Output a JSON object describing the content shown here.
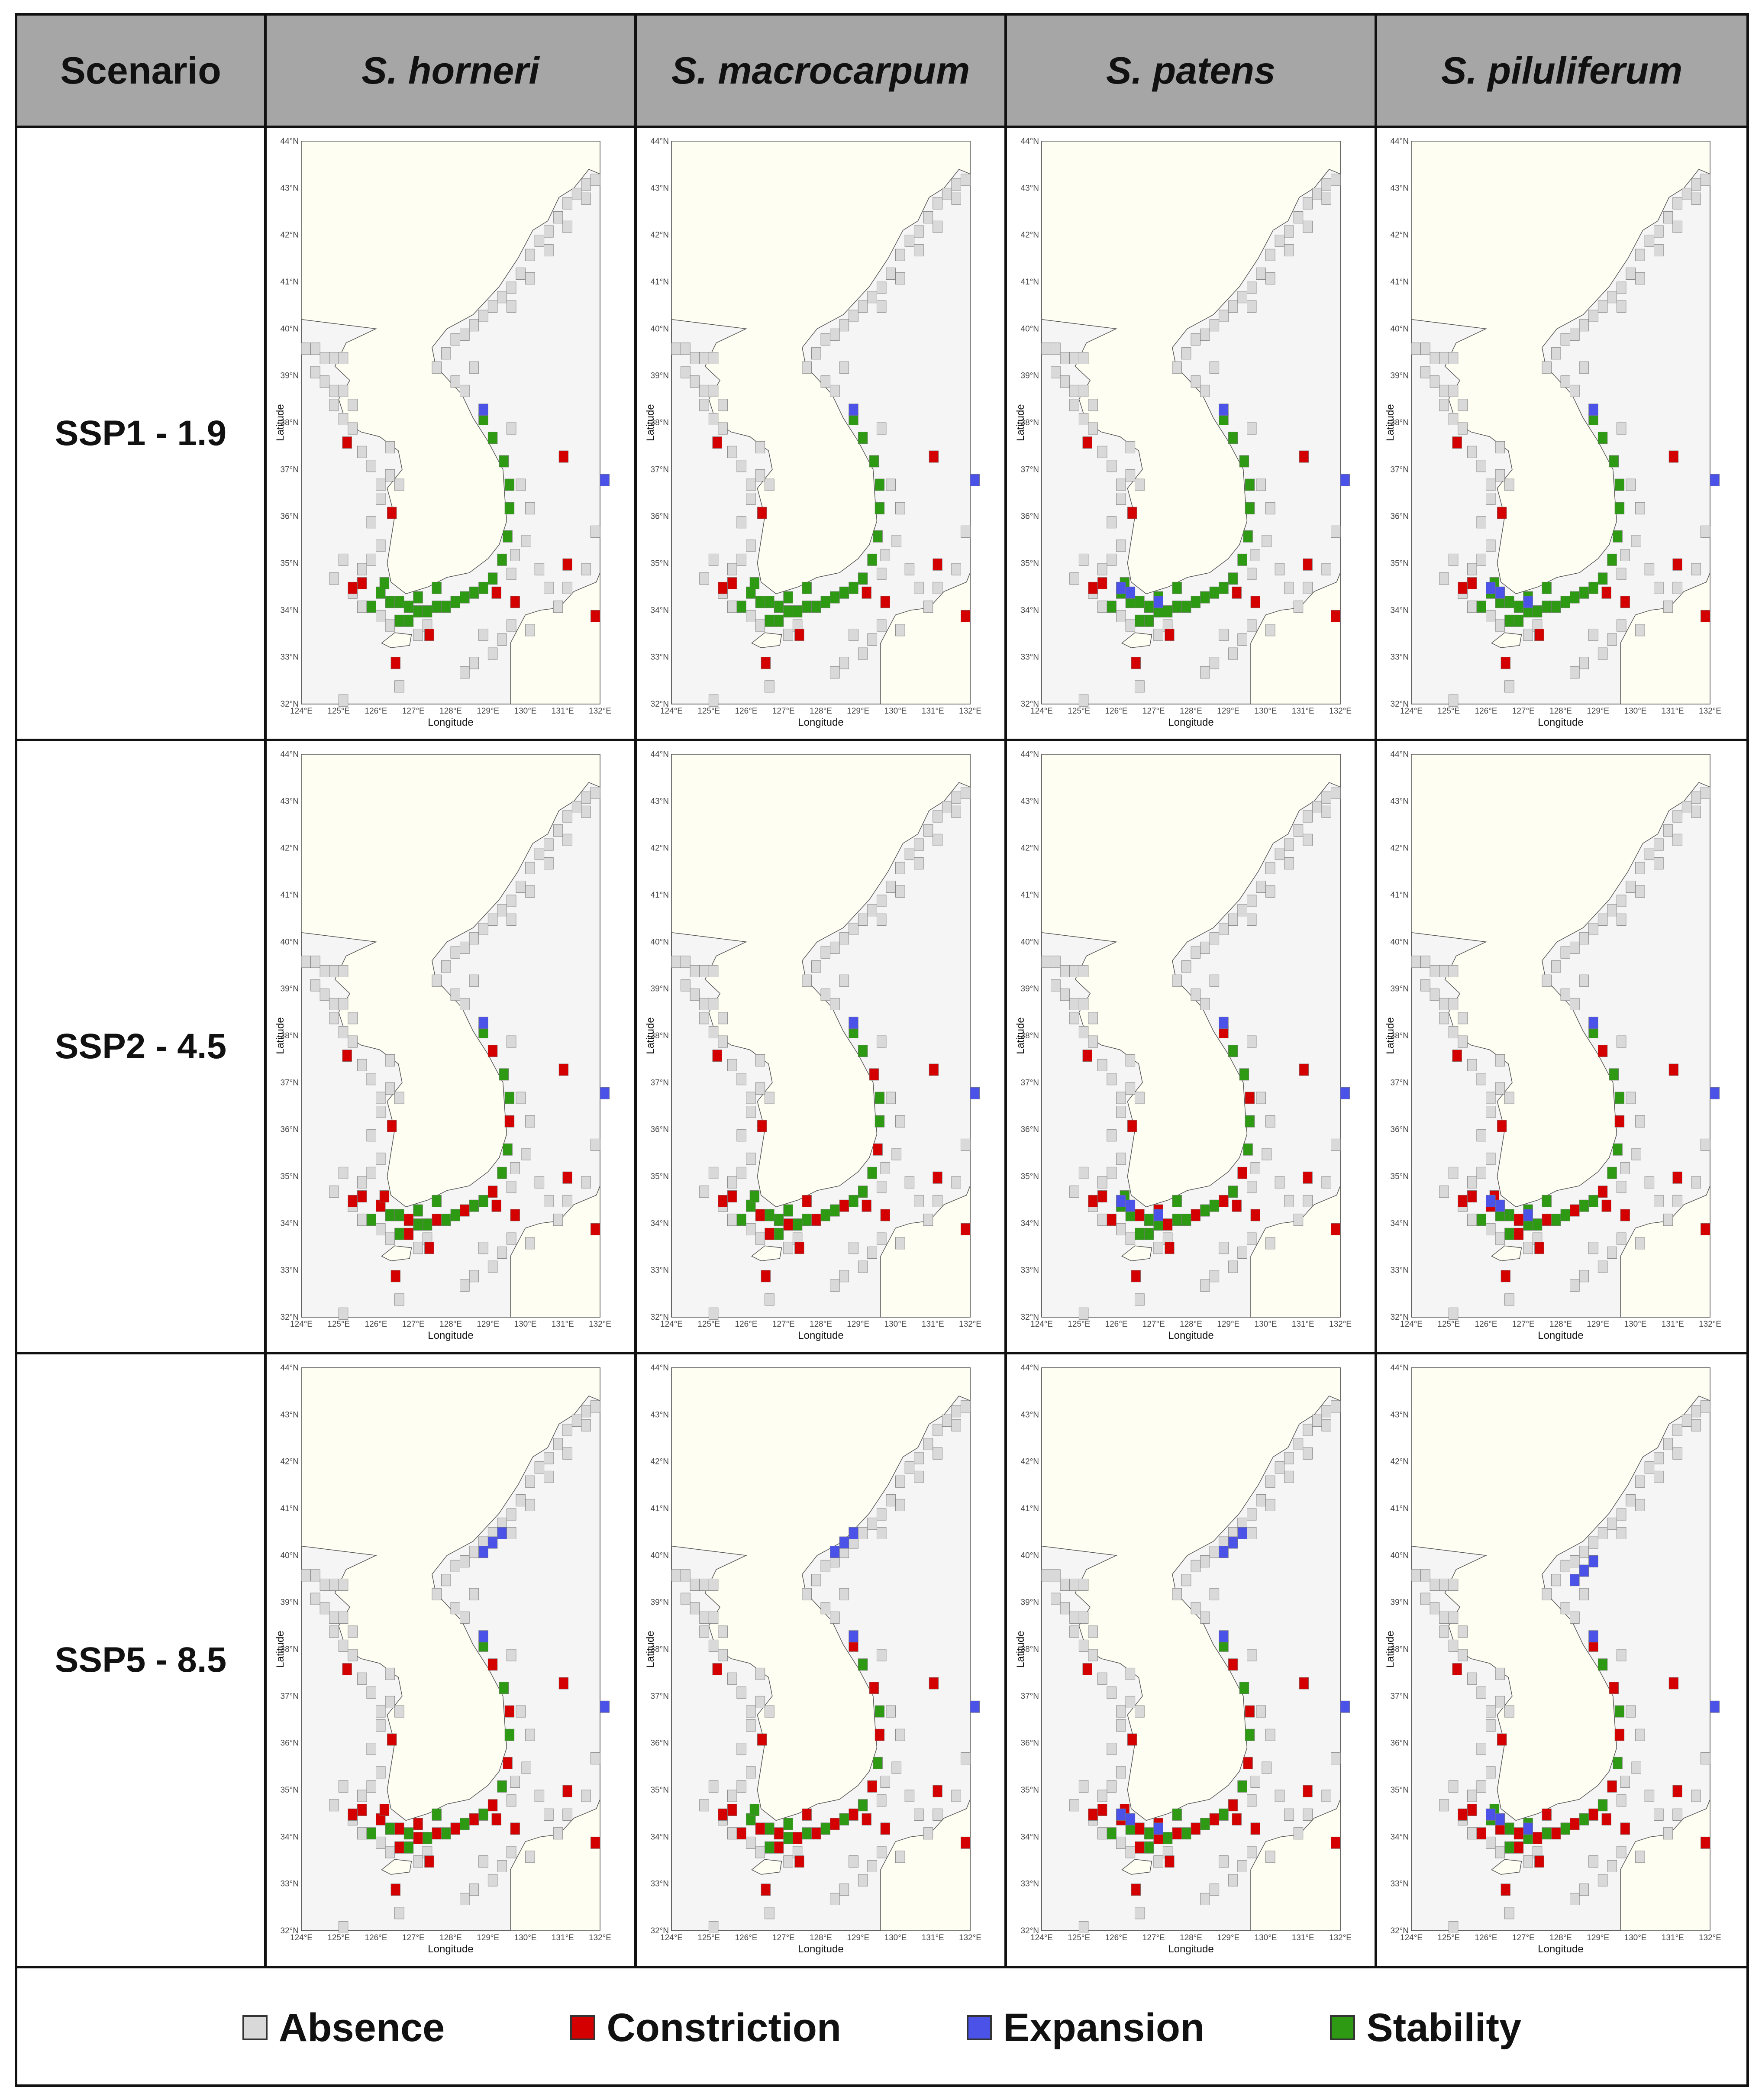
{
  "header": {
    "scenario_label": "Scenario",
    "species": [
      "S. horneri",
      "S. macrocarpum",
      "S. patens",
      "S. piluliferum"
    ]
  },
  "scenarios": [
    "SSP1 - 1.9",
    "SSP2 - 4.5",
    "SSP5 - 8.5"
  ],
  "map_axes": {
    "xlabel": "Longitude",
    "ylabel": "Latitude",
    "lon_range": [
      124,
      132
    ],
    "lat_range": [
      32,
      44
    ],
    "lon_ticks": [
      "124°E",
      "125°E",
      "126°E",
      "127°E",
      "128°E",
      "129°E",
      "130°E",
      "131°E",
      "132°E"
    ],
    "lat_ticks": [
      "32°N",
      "33°N",
      "34°N",
      "35°N",
      "36°N",
      "37°N",
      "38°N",
      "39°N",
      "40°N",
      "41°N",
      "42°N",
      "43°N",
      "44°N"
    ]
  },
  "legend": [
    {
      "label": "Absence",
      "color": "#d9d9d9"
    },
    {
      "label": "Constriction",
      "color": "#d40000"
    },
    {
      "label": "Expansion",
      "color": "#4a52e8"
    },
    {
      "label": "Stability",
      "color": "#2e9a14"
    }
  ],
  "colors": {
    "land": "#fefef2",
    "sea": "#f5f5f5",
    "absence": "#d9d9d9",
    "constriction": "#d40000",
    "expansion": "#4a52e8",
    "stability": "#2e9a14"
  }
}
